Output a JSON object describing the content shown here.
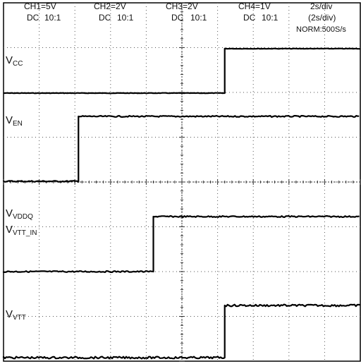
{
  "chart_data": {
    "type": "line",
    "title": "",
    "channels": [
      {
        "name": "CH1=5V",
        "coupling": "DC",
        "probe": "10:1"
      },
      {
        "name": "CH2=2V",
        "coupling": "DC",
        "probe": "10:1"
      },
      {
        "name": "CH3=2V",
        "coupling": "DC",
        "probe": "10:1"
      },
      {
        "name": "CH4=1V",
        "coupling": "DC",
        "probe": "10:1"
      }
    ],
    "timebase": {
      "main": "2s/div",
      "sub": "(2s/div)",
      "mode": "NORM:500S/s"
    },
    "grid": {
      "hdiv": 10,
      "vdiv": 8,
      "visible": true
    },
    "x_unit": "div",
    "xlim": [
      0,
      10
    ],
    "series": [
      {
        "label_main": "V",
        "label_sub": "CC",
        "high": 1,
        "step_at": 6.2,
        "noise": "low"
      },
      {
        "label_main": "V",
        "label_sub": "EN",
        "high": 1,
        "step_at": 2.1,
        "noise": "medium"
      },
      {
        "label_main": "V",
        "label_sub": "VDDQ",
        "label2_main": "V",
        "label2_sub": "VTT_IN",
        "high": 1,
        "step_at": 4.2,
        "noise": "medium"
      },
      {
        "label_main": "V",
        "label_sub": "VTT",
        "high": 1,
        "step_at": 6.2,
        "noise": "high"
      }
    ]
  }
}
